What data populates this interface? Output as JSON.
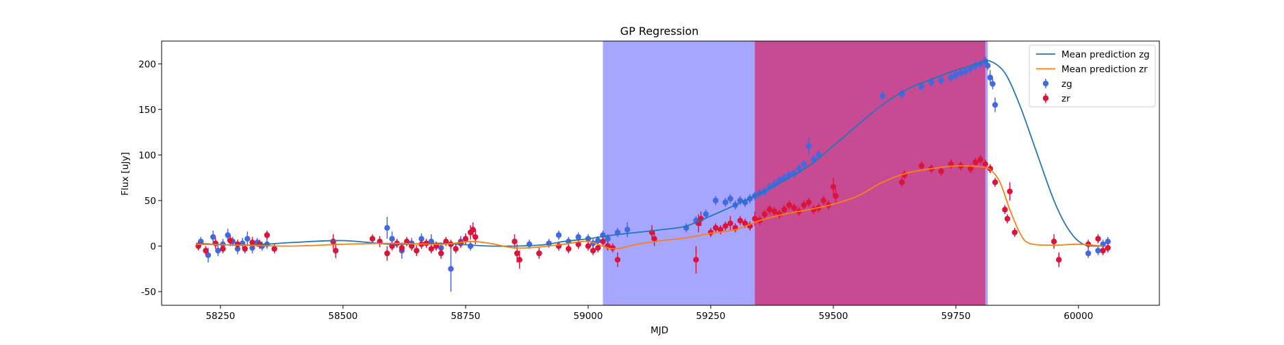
{
  "chart_data": {
    "type": "scatter",
    "title": "GP Regression",
    "xlabel": "MJD",
    "ylabel": "Flux [uJy]",
    "xlim": [
      58130,
      60165
    ],
    "ylim": [
      -65,
      225
    ],
    "xticks": [
      58250,
      58500,
      58750,
      59000,
      59250,
      59500,
      59750,
      60000
    ],
    "yticks": [
      -50,
      0,
      50,
      100,
      150,
      200
    ],
    "grid": false,
    "legend_position": "top-right",
    "shaded_regions": [
      {
        "x0": 59030,
        "x1": 59815,
        "color": "#0000ff",
        "alpha": 0.35
      },
      {
        "x0": 59340,
        "x1": 59810,
        "color": "#e0003a",
        "alpha": 0.55
      }
    ],
    "lines": [
      {
        "name": "Mean prediction zg",
        "color": "#1f77b4",
        "x": [
          58200,
          58300,
          58400,
          58500,
          58600,
          58700,
          58800,
          58900,
          58950,
          59000,
          59050,
          59100,
          59150,
          59200,
          59250,
          59300,
          59350,
          59400,
          59450,
          59500,
          59550,
          59600,
          59650,
          59700,
          59750,
          59800,
          59820,
          59850,
          59880,
          59910,
          59950,
          59980,
          60010,
          60050
        ],
        "y": [
          3,
          1,
          4,
          6,
          2,
          3,
          0,
          1,
          5,
          8,
          12,
          15,
          18,
          22,
          33,
          45,
          58,
          72,
          88,
          110,
          133,
          155,
          172,
          183,
          193,
          201,
          203,
          190,
          155,
          110,
          50,
          18,
          2,
          0
        ]
      },
      {
        "name": "Mean prediction zr",
        "color": "#ff7f0e",
        "x": [
          58200,
          58300,
          58400,
          58500,
          58600,
          58700,
          58760,
          58800,
          58850,
          58900,
          58950,
          59000,
          59050,
          59100,
          59150,
          59200,
          59250,
          59300,
          59350,
          59400,
          59450,
          59500,
          59550,
          59600,
          59650,
          59700,
          59750,
          59800,
          59820,
          59840,
          59860,
          59880,
          59900,
          59950,
          60000,
          60050
        ],
        "y": [
          2,
          1,
          0,
          2,
          3,
          2,
          5,
          3,
          -2,
          -1,
          2,
          5,
          -3,
          2,
          6,
          9,
          14,
          18,
          28,
          35,
          40,
          46,
          55,
          70,
          80,
          85,
          88,
          87,
          84,
          70,
          40,
          15,
          3,
          1,
          2,
          0
        ]
      }
    ],
    "series": [
      {
        "name": "zg",
        "color": "#4169e1",
        "x": [
          58210,
          58225,
          58235,
          58245,
          58255,
          58265,
          58275,
          58285,
          58295,
          58305,
          58315,
          58325,
          58335,
          58345,
          58480,
          58590,
          58600,
          58620,
          58640,
          58660,
          58680,
          58700,
          58720,
          58740,
          58760,
          58880,
          58900,
          58920,
          58940,
          58960,
          58980,
          59000,
          59010,
          59020,
          59030,
          59040,
          59060,
          59080,
          59200,
          59220,
          59240,
          59260,
          59280,
          59290,
          59300,
          59310,
          59320,
          59330,
          59340,
          59350,
          59360,
          59370,
          59380,
          59390,
          59400,
          59410,
          59420,
          59430,
          59440,
          59450,
          59460,
          59470,
          59600,
          59640,
          59680,
          59700,
          59720,
          59740,
          59750,
          59760,
          59770,
          59780,
          59790,
          59800,
          59810,
          59815,
          59820,
          59825,
          59830,
          60020,
          60040,
          60050,
          60060
        ],
        "y": [
          5,
          -10,
          10,
          -5,
          2,
          12,
          5,
          -3,
          3,
          8,
          -2,
          4,
          0,
          2,
          5,
          20,
          8,
          -5,
          3,
          8,
          5,
          -2,
          -25,
          5,
          0,
          2,
          -8,
          3,
          12,
          5,
          10,
          8,
          3,
          6,
          12,
          8,
          15,
          18,
          20,
          28,
          35,
          50,
          48,
          52,
          45,
          50,
          48,
          52,
          55,
          58,
          60,
          65,
          68,
          72,
          75,
          78,
          80,
          85,
          90,
          110,
          95,
          100,
          165,
          167,
          175,
          180,
          182,
          185,
          188,
          190,
          192,
          195,
          198,
          200,
          203,
          198,
          185,
          178,
          155,
          -8,
          -5,
          2,
          5
        ],
        "err": [
          5,
          8,
          7,
          6,
          6,
          7,
          5,
          6,
          6,
          8,
          6,
          5,
          5,
          5,
          6,
          12,
          8,
          9,
          6,
          6,
          8,
          6,
          25,
          6,
          5,
          5,
          6,
          5,
          5,
          5,
          5,
          5,
          5,
          5,
          5,
          5,
          5,
          8,
          5,
          5,
          5,
          5,
          5,
          5,
          5,
          5,
          5,
          5,
          5,
          5,
          5,
          5,
          5,
          5,
          5,
          5,
          5,
          5,
          5,
          10,
          5,
          5,
          5,
          5,
          5,
          5,
          5,
          5,
          5,
          5,
          5,
          5,
          5,
          5,
          5,
          5,
          8,
          6,
          8,
          5,
          5,
          5,
          5
        ]
      },
      {
        "name": "zr",
        "color": "#dc143c",
        "x": [
          58205,
          58220,
          58240,
          58255,
          58270,
          58285,
          58300,
          58315,
          58330,
          58345,
          58360,
          58480,
          58485,
          58560,
          58575,
          58590,
          58600,
          58610,
          58620,
          58630,
          58640,
          58650,
          58660,
          58670,
          58680,
          58690,
          58700,
          58710,
          58720,
          58730,
          58740,
          58750,
          58760,
          58765,
          58770,
          58850,
          58855,
          58860,
          58900,
          58940,
          58960,
          58980,
          59000,
          59010,
          59020,
          59030,
          59040,
          59050,
          59060,
          59130,
          59135,
          59220,
          59225,
          59230,
          59250,
          59260,
          59270,
          59280,
          59290,
          59300,
          59310,
          59320,
          59330,
          59340,
          59350,
          59360,
          59370,
          59380,
          59390,
          59400,
          59410,
          59420,
          59430,
          59440,
          59450,
          59460,
          59470,
          59480,
          59490,
          59500,
          59505,
          59640,
          59645,
          59680,
          59700,
          59720,
          59740,
          59760,
          59780,
          59790,
          59800,
          59810,
          59820,
          59830,
          59850,
          59855,
          59860,
          59870,
          59950,
          59960,
          60020,
          60040,
          60050,
          60060
        ],
        "y": [
          0,
          -5,
          3,
          -3,
          6,
          2,
          -3,
          4,
          2,
          12,
          -3,
          5,
          -5,
          8,
          5,
          -8,
          0,
          3,
          -2,
          5,
          0,
          -5,
          2,
          3,
          -3,
          0,
          -8,
          5,
          2,
          -3,
          3,
          8,
          15,
          18,
          10,
          5,
          -8,
          -15,
          -8,
          0,
          -3,
          2,
          0,
          -5,
          -2,
          5,
          0,
          -2,
          -15,
          15,
          8,
          -15,
          25,
          30,
          15,
          20,
          18,
          22,
          25,
          20,
          28,
          25,
          22,
          30,
          28,
          35,
          40,
          38,
          35,
          40,
          45,
          42,
          38,
          45,
          48,
          40,
          42,
          50,
          45,
          65,
          55,
          70,
          78,
          88,
          85,
          82,
          90,
          88,
          85,
          92,
          95,
          90,
          85,
          70,
          40,
          30,
          60,
          15,
          5,
          -15,
          2,
          8,
          -5,
          -2
        ],
        "err": [
          5,
          5,
          6,
          5,
          6,
          5,
          5,
          6,
          5,
          5,
          5,
          8,
          8,
          5,
          6,
          8,
          5,
          5,
          5,
          5,
          5,
          6,
          5,
          5,
          5,
          5,
          6,
          5,
          5,
          5,
          5,
          6,
          8,
          8,
          8,
          8,
          10,
          10,
          6,
          5,
          5,
          5,
          5,
          5,
          5,
          5,
          5,
          5,
          8,
          8,
          8,
          15,
          10,
          8,
          5,
          5,
          5,
          5,
          8,
          5,
          5,
          5,
          5,
          8,
          5,
          5,
          5,
          5,
          5,
          5,
          5,
          5,
          5,
          5,
          5,
          5,
          5,
          5,
          5,
          10,
          8,
          5,
          5,
          5,
          5,
          5,
          5,
          5,
          5,
          5,
          5,
          5,
          5,
          5,
          5,
          5,
          10,
          5,
          8,
          8,
          5,
          5,
          5,
          5
        ]
      }
    ]
  }
}
